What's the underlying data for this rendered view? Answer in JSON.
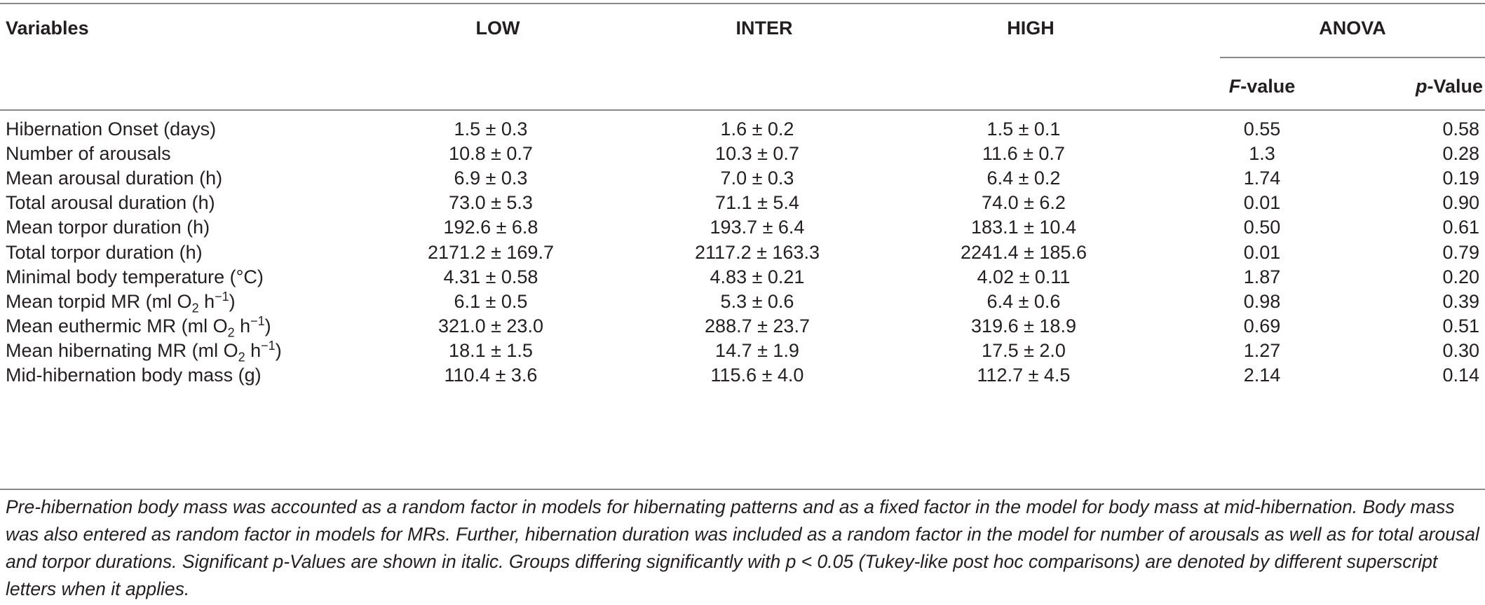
{
  "headers": {
    "variables": "Variables",
    "low": "LOW",
    "inter": "INTER",
    "high": "HIGH",
    "anova": "ANOVA",
    "f_value_italic": "F",
    "f_value_rest": "-value",
    "p_value_italic": "p",
    "p_value_rest": "-Value"
  },
  "rows": [
    {
      "var": "Hibernation Onset (days)",
      "low": "1.5 ± 0.3",
      "inter": "1.6 ± 0.2",
      "high": "1.5 ± 0.1",
      "f": "0.55",
      "p": "0.58"
    },
    {
      "var": "Number of arousals",
      "low": "10.8 ± 0.7",
      "inter": "10.3 ± 0.7",
      "high": "11.6 ± 0.7",
      "f": "1.3",
      "p": "0.28"
    },
    {
      "var": "Mean arousal duration (h)",
      "low": "6.9 ± 0.3",
      "inter": "7.0 ± 0.3",
      "high": "6.4 ± 0.2",
      "f": "1.74",
      "p": "0.19"
    },
    {
      "var": "Total arousal duration (h)",
      "low": "73.0 ± 5.3",
      "inter": "71.1 ± 5.4",
      "high": "74.0 ± 6.2",
      "f": "0.01",
      "p": "0.90"
    },
    {
      "var": "Mean torpor duration (h)",
      "low": "192.6 ± 6.8",
      "inter": "193.7 ± 6.4",
      "high": "183.1 ± 10.4",
      "f": "0.50",
      "p": "0.61"
    },
    {
      "var": "Total torpor duration (h)",
      "low": "2171.2 ± 169.7",
      "inter": "2117.2 ± 163.3",
      "high": "2241.4 ± 185.6",
      "f": "0.01",
      "p": "0.79"
    },
    {
      "var": "Minimal body temperature (°C)",
      "low": "4.31 ± 0.58",
      "inter": "4.83 ± 0.21",
      "high": "4.02 ± 0.11",
      "f": "1.87",
      "p": "0.20"
    },
    {
      "var_pre": "Mean torpid MR (ml O",
      "var_sub": "2",
      "var_mid": " h",
      "var_sup": "−1",
      "var_post": ")",
      "low": "6.1 ± 0.5",
      "inter": "5.3 ± 0.6",
      "high": "6.4 ± 0.6",
      "f": "0.98",
      "p": "0.39"
    },
    {
      "var_pre": "Mean euthermic MR (ml O",
      "var_sub": "2",
      "var_mid": " h",
      "var_sup": "−1",
      "var_post": ")",
      "low": "321.0 ± 23.0",
      "inter": "288.7 ± 23.7",
      "high": "319.6 ± 18.9",
      "f": "0.69",
      "p": "0.51"
    },
    {
      "var_pre": "Mean hibernating MR (ml O",
      "var_sub": "2",
      "var_mid": " h",
      "var_sup": "−1",
      "var_post": ")",
      "low": "18.1 ± 1.5",
      "inter": "14.7 ± 1.9",
      "high": "17.5 ± 2.0",
      "f": "1.27",
      "p": "0.30"
    },
    {
      "var": "Mid-hibernation body mass (g)",
      "low": "110.4 ± 3.6",
      "inter": "115.6 ± 4.0",
      "high": "112.7 ± 4.5",
      "f": "2.14",
      "p": "0.14"
    }
  ],
  "footnote": "Pre-hibernation body mass was accounted as a random factor in models for hibernating patterns and as a fixed factor in the model for body mass at mid-hibernation. Body mass was also entered as random factor in models for MRs. Further, hibernation duration was included as a random factor in the model for number of arousals as well as for total arousal and torpor durations. Significant p-Values are shown in italic. Groups differing significantly with p < 0.05 (Tukey-like post hoc comparisons) are denoted by different superscript letters when it applies."
}
